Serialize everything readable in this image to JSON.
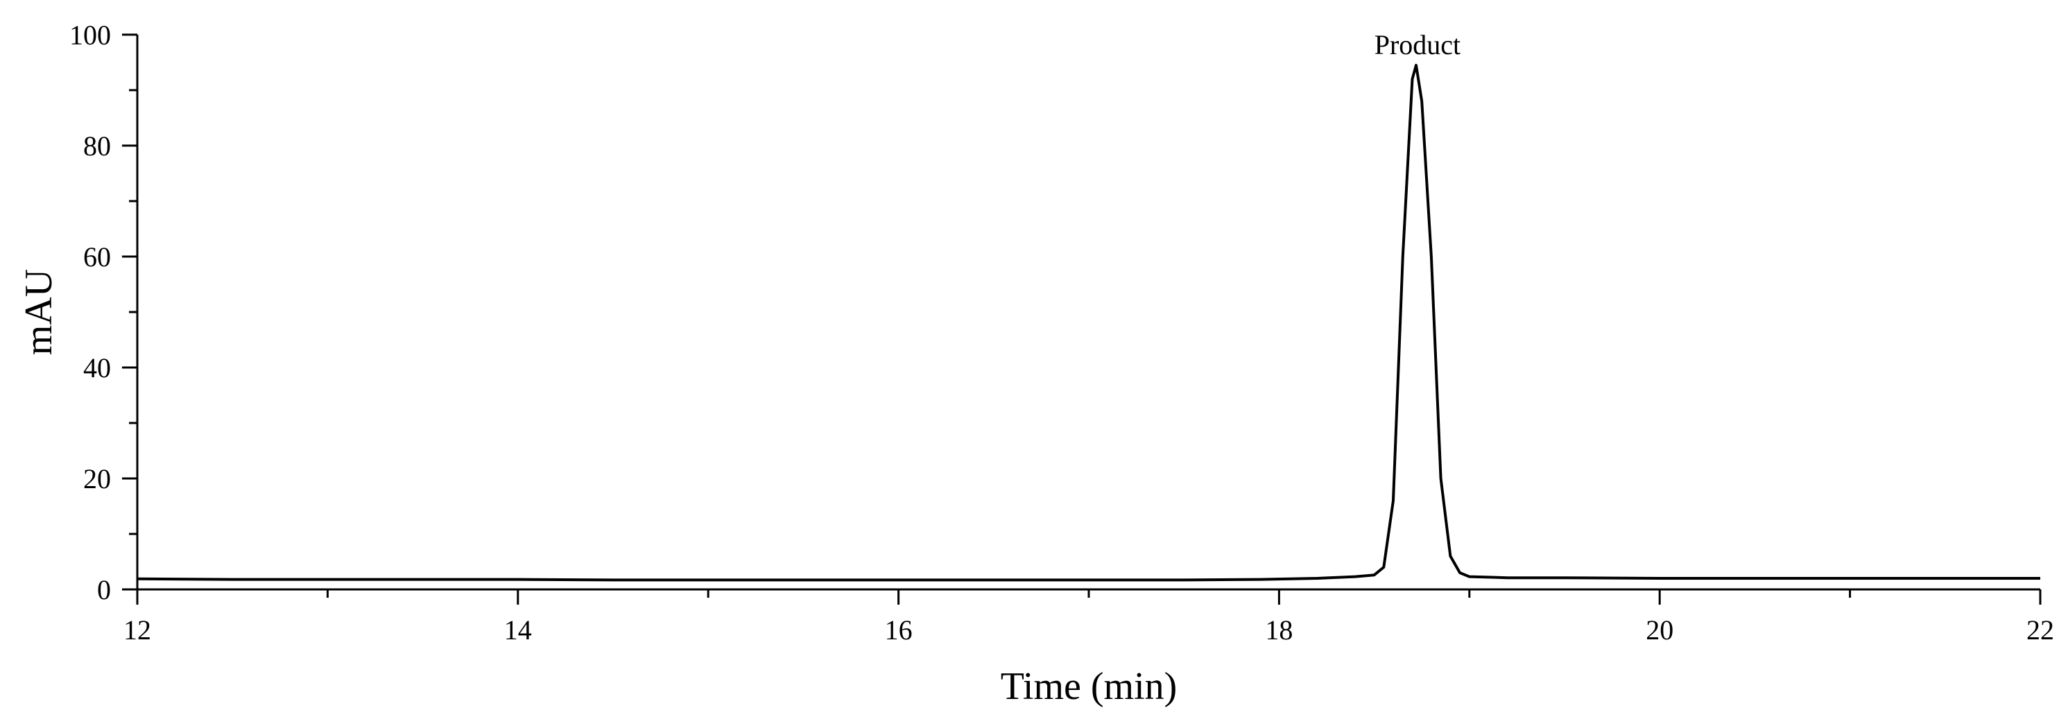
{
  "chart_data": {
    "type": "line",
    "title": "",
    "xlabel": "Time (min)",
    "ylabel": "mAU",
    "xlim": [
      12,
      22
    ],
    "ylim": [
      0,
      100
    ],
    "x_ticks": [
      12,
      14,
      16,
      18,
      20,
      22
    ],
    "y_ticks": [
      0,
      20,
      40,
      60,
      80,
      100
    ],
    "x_minor_step": 1,
    "y_minor_step": 10,
    "grid": false,
    "legend": "none",
    "line_color": "#000000",
    "annotations": [
      {
        "text": "Product",
        "x": 18.72,
        "y": 94.5
      }
    ],
    "series": [
      {
        "points": [
          [
            12.0,
            1.9
          ],
          [
            12.5,
            1.8
          ],
          [
            13.0,
            1.8
          ],
          [
            13.5,
            1.8
          ],
          [
            14.0,
            1.8
          ],
          [
            14.5,
            1.7
          ],
          [
            15.0,
            1.7
          ],
          [
            15.5,
            1.7
          ],
          [
            16.0,
            1.7
          ],
          [
            16.5,
            1.7
          ],
          [
            17.0,
            1.7
          ],
          [
            17.5,
            1.7
          ],
          [
            17.9,
            1.8
          ],
          [
            18.2,
            2.0
          ],
          [
            18.4,
            2.3
          ],
          [
            18.5,
            2.6
          ],
          [
            18.55,
            4.0
          ],
          [
            18.6,
            16.0
          ],
          [
            18.65,
            60.0
          ],
          [
            18.7,
            92.0
          ],
          [
            18.72,
            94.5
          ],
          [
            18.75,
            88.0
          ],
          [
            18.8,
            60.0
          ],
          [
            18.85,
            20.0
          ],
          [
            18.9,
            6.0
          ],
          [
            18.95,
            3.0
          ],
          [
            19.0,
            2.3
          ],
          [
            19.2,
            2.1
          ],
          [
            19.5,
            2.1
          ],
          [
            20.0,
            2.0
          ],
          [
            20.5,
            2.0
          ],
          [
            21.0,
            2.0
          ],
          [
            21.5,
            2.0
          ],
          [
            22.0,
            2.0
          ]
        ]
      }
    ]
  }
}
